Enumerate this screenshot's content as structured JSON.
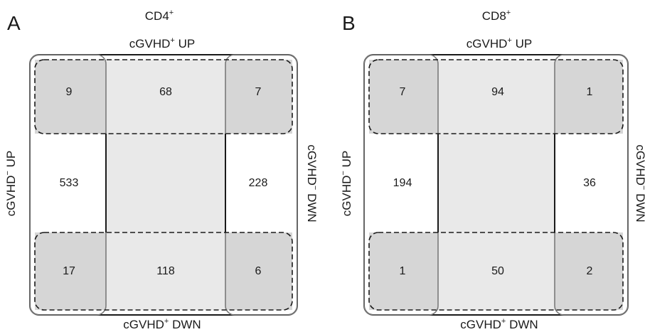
{
  "panels": [
    {
      "letter": "A",
      "cell_type": {
        "base": "CD4",
        "sup": "+"
      },
      "top_label": {
        "base": "cGVHD",
        "sup": "+",
        "rest": " UP"
      },
      "bottom_label": {
        "base": "cGVHD",
        "sup": "+",
        "rest": " DWN"
      },
      "left_label": {
        "base": "cGVHD",
        "sup": "−",
        "rest": " UP"
      },
      "right_label": {
        "base": "cGVHD",
        "sup": "−",
        "rest": " DWN"
      },
      "counts": {
        "top_left": "9",
        "top_mid": "68",
        "top_right": "7",
        "mid_left": "533",
        "mid_right": "228",
        "bot_left": "17",
        "bot_mid": "118",
        "bot_right": "6"
      }
    },
    {
      "letter": "B",
      "cell_type": {
        "base": "CD8",
        "sup": "+"
      },
      "top_label": {
        "base": "cGVHD",
        "sup": "+",
        "rest": " UP"
      },
      "bottom_label": {
        "base": "cGVHD",
        "sup": "+",
        "rest": " DWN"
      },
      "left_label": {
        "base": "cGVHD",
        "sup": "−",
        "rest": " UP"
      },
      "right_label": {
        "base": "cGVHD",
        "sup": "−",
        "rest": " DWN"
      },
      "counts": {
        "top_left": "7",
        "top_mid": "94",
        "top_right": "1",
        "mid_left": "194",
        "mid_right": "36",
        "bot_left": "1",
        "bot_mid": "50",
        "bot_right": "2"
      }
    }
  ],
  "colors": {
    "light_fill": "#e9e9e9",
    "overlap_fill": "#d6d6d6",
    "outline": "#1a1a1a",
    "inner_outline": "#7a7a7a"
  }
}
